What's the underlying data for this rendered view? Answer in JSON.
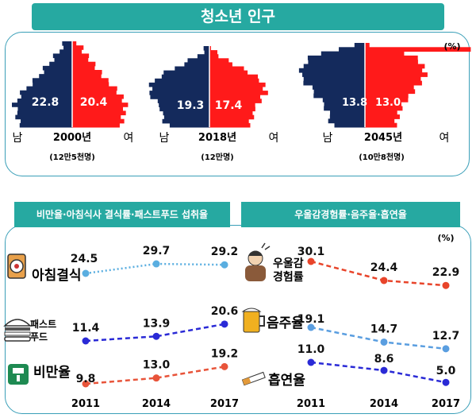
{
  "title": "청소년 인구",
  "percent_unit": "(%)",
  "pyramids": [
    {
      "year_label": "2000년",
      "population": "(12만5천명)",
      "male": "22.8",
      "female": "20.4",
      "male_label": "남",
      "female_label": "여"
    },
    {
      "year_label": "2018년",
      "population": "(12만명)",
      "male": "19.3",
      "female": "17.4",
      "male_label": "남",
      "female_label": "여"
    },
    {
      "year_label": "2045년",
      "population": "(10만8천명)",
      "male": "13.8",
      "female": "13.0",
      "male_label": "남",
      "female_label": "여"
    }
  ],
  "left_banner": "비만율·아침식사 결식률·패스트푸드 섭취율",
  "right_banner": "우울감경험률·음주율·흡연율",
  "chart_data": [
    {
      "type": "line",
      "x": [
        "2011",
        "2014",
        "2017"
      ],
      "series": [
        {
          "name": "아침결식",
          "values": [
            24.5,
            29.7,
            29.2
          ],
          "color": "#5aaee0",
          "style": "dotted"
        },
        {
          "name": "패스트푸드",
          "values": [
            11.4,
            13.9,
            20.6
          ],
          "color": "#2a2ad6",
          "style": "dashed"
        },
        {
          "name": "비만율",
          "values": [
            9.8,
            13.0,
            19.2
          ],
          "color": "#e8543a",
          "style": "dashed"
        }
      ]
    },
    {
      "type": "line",
      "x": [
        "2011",
        "2014",
        "2017"
      ],
      "series": [
        {
          "name": "우울감경험률",
          "values": [
            30.1,
            24.4,
            22.9
          ],
          "color": "#e8442a",
          "style": "dashed"
        },
        {
          "name": "음주율",
          "values": [
            19.1,
            14.7,
            12.7
          ],
          "color": "#5a9ee0",
          "style": "dashed"
        },
        {
          "name": "흡연율",
          "values": [
            11.0,
            8.6,
            5.0
          ],
          "color": "#2a2ad6",
          "style": "dashed"
        }
      ]
    }
  ],
  "icon_labels": {
    "breakfast": "아침결식",
    "fastfood": "패스트푸드",
    "obesity": "비만율",
    "depression": "우울감경험률",
    "drinking": "음주율",
    "smoking": "흡연율"
  },
  "colors": {
    "male": "#142a5c",
    "female": "#ff1a1a",
    "teal": "#26a9a1"
  }
}
